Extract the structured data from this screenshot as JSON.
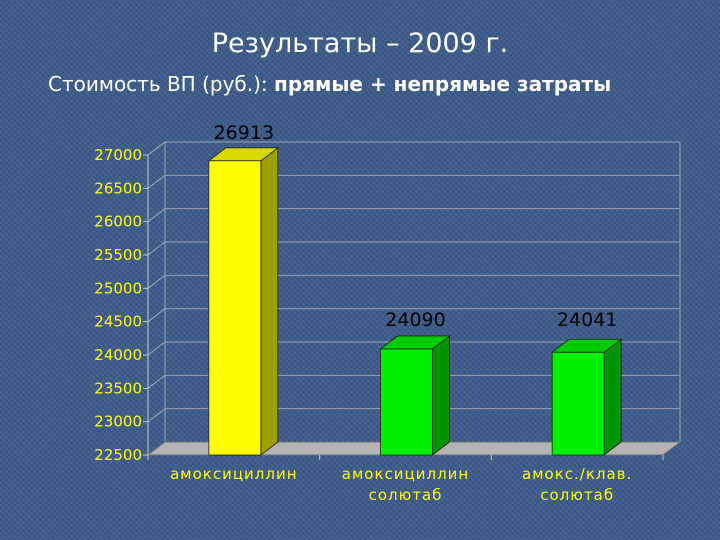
{
  "slide": {
    "title": "Результаты – 2009 г.",
    "subtitle_plain": "Стоимость ВП (руб.): ",
    "subtitle_bold": "прямые + непрямые затраты"
  },
  "colors": {
    "background": "#3c5a8a",
    "text": "#ffffff",
    "axis_labels": "#ffff00",
    "bar_first": "#ffff00",
    "bar_other": "#00ee00",
    "floor": "#b4b4b4"
  },
  "chart_data": {
    "type": "bar",
    "style": "3d-column",
    "title": "Результаты – 2009 г.",
    "subtitle": "Стоимость ВП (руб.): прямые + непрямые затраты",
    "categories": [
      [
        "амоксициллин"
      ],
      [
        "амоксициллин",
        "солютаб"
      ],
      [
        "амокс./клав.",
        "солютаб"
      ]
    ],
    "values": [
      26913,
      24090,
      24041
    ],
    "data_labels": [
      "26913",
      "24090",
      "24041"
    ],
    "yticks": [
      "22500",
      "23000",
      "23500",
      "24000",
      "24500",
      "25000",
      "25500",
      "26000",
      "26500",
      "27000"
    ],
    "ylim": [
      22500,
      27000
    ],
    "grid": true,
    "legend": "none"
  }
}
